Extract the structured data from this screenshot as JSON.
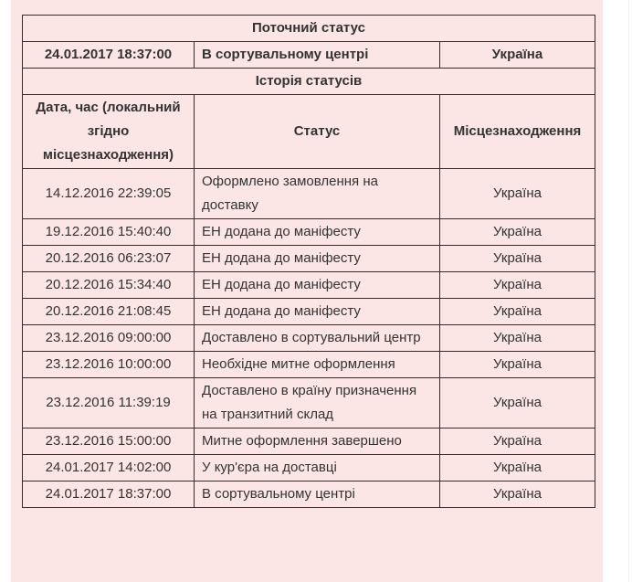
{
  "current": {
    "title": "Поточний статус",
    "datetime": "24.01.2017 18:37:00",
    "status": "В сортувальному центрі",
    "location": "Україна"
  },
  "history": {
    "title": "Історія статусів",
    "columns": [
      "Дата, час (локальний згідно місцезнаходження)",
      "Статус",
      "Місцезнаходження"
    ],
    "rows": [
      {
        "datetime": "14.12.2016 22:39:05",
        "status": "Оформлено замовлення на доставку",
        "location": "Україна"
      },
      {
        "datetime": "19.12.2016 15:40:40",
        "status": "ЕН додана до маніфесту",
        "location": "Україна"
      },
      {
        "datetime": "20.12.2016 06:23:07",
        "status": "ЕН додана до маніфесту",
        "location": "Україна"
      },
      {
        "datetime": "20.12.2016 15:34:40",
        "status": "ЕН додана до маніфесту",
        "location": "Україна"
      },
      {
        "datetime": "20.12.2016 21:08:45",
        "status": "ЕН додана до маніфесту",
        "location": "Україна"
      },
      {
        "datetime": "23.12.2016 09:00:00",
        "status": "Доставлено в сортувальний центр",
        "location": "Україна"
      },
      {
        "datetime": "23.12.2016 10:00:00",
        "status": "Необхідне митне оформлення",
        "location": "Україна"
      },
      {
        "datetime": "23.12.2016 11:39:19",
        "status": "Доставлено в країну призначення на транзитний склад",
        "location": "Україна"
      },
      {
        "datetime": "23.12.2016 15:00:00",
        "status": "Митне оформлення завершено",
        "location": "Україна"
      },
      {
        "datetime": "24.01.2017 14:02:00",
        "status": "У кур'єра на доставці",
        "location": "Україна"
      },
      {
        "datetime": "24.01.2017 18:37:00",
        "status": "В сортувальному центрі",
        "location": "Україна"
      }
    ]
  },
  "colors": {
    "background": "#fce5e5",
    "border": "#3a2a2a",
    "text": "#333333"
  }
}
